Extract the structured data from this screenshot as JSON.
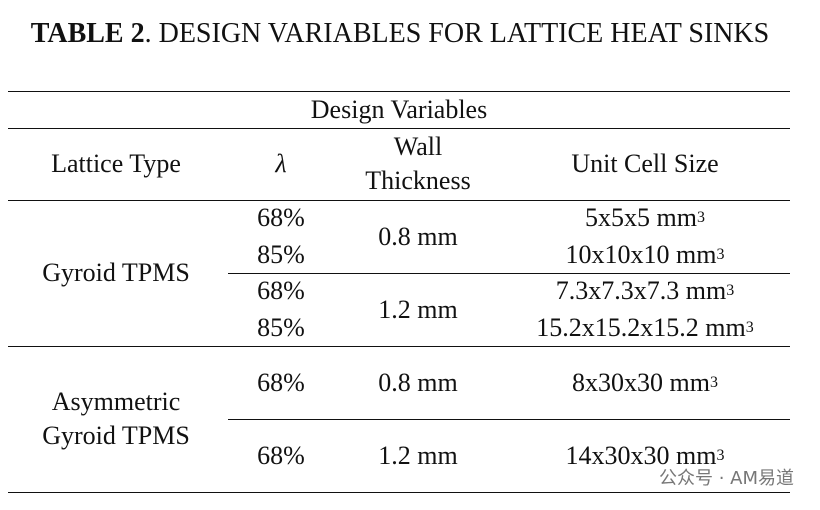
{
  "title": {
    "label": "TABLE 2",
    "text": ". DESIGN VARIABLES FOR LATTICE HEAT SINKS"
  },
  "table": {
    "group_header": "Design Variables",
    "columns": [
      "Lattice Type",
      "λ",
      "Wall Thickness",
      "Unit Cell Size"
    ],
    "groups": [
      {
        "lattice_type": "Gyroid TPMS",
        "rows": [
          {
            "wall": "0.8 mm",
            "entries": [
              {
                "lambda": "68%",
                "size": "5x5x5 mm",
                "exp": "3"
              },
              {
                "lambda": "85%",
                "size": "10x10x10 mm",
                "exp": "3"
              }
            ]
          },
          {
            "wall": "1.2 mm",
            "entries": [
              {
                "lambda": "68%",
                "size": "7.3x7.3x7.3 mm",
                "exp": "3"
              },
              {
                "lambda": "85%",
                "size": "15.2x15.2x15.2 mm",
                "exp": "3"
              }
            ]
          }
        ]
      },
      {
        "lattice_type": "Asymmetric Gyroid TPMS",
        "rows": [
          {
            "wall": "0.8 mm",
            "entries": [
              {
                "lambda": "68%",
                "size": "8x30x30 mm",
                "exp": "3"
              }
            ]
          },
          {
            "wall": "1.2 mm",
            "entries": [
              {
                "lambda": "68%",
                "size": "14x30x30 mm",
                "exp": "3"
              }
            ]
          }
        ]
      }
    ]
  },
  "watermark": "公众号 · AM易道"
}
